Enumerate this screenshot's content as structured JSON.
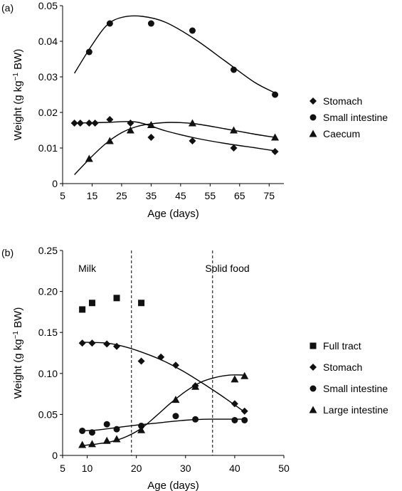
{
  "chart_data": [
    {
      "type": "scatter",
      "panel_label": "(a)",
      "xlabel": "Age (days)",
      "ylabel_pre": "Weight (g kg",
      "ylabel_sup": "−1",
      "ylabel_post": " BW)",
      "xlim": [
        5,
        80
      ],
      "ylim": [
        0,
        0.05
      ],
      "xticks": [
        5,
        15,
        25,
        35,
        45,
        55,
        65,
        75
      ],
      "xtick_labels": [
        "5",
        "15",
        "25",
        "35",
        "45",
        "55",
        "65",
        "75"
      ],
      "yticks": [
        0,
        0.01,
        0.02,
        0.03,
        0.04,
        0.05
      ],
      "ytick_labels": [
        "0",
        "0.01",
        "0.02",
        "0.03",
        "0.04",
        "0.05"
      ],
      "grid": false,
      "legend_position": "right",
      "series": [
        {
          "name": "Stomach",
          "marker": "diamond",
          "points": [
            [
              9,
              0.017
            ],
            [
              11,
              0.017
            ],
            [
              14,
              0.017
            ],
            [
              16,
              0.017
            ],
            [
              21,
              0.018
            ],
            [
              28,
              0.017
            ],
            [
              35,
              0.013
            ],
            [
              49,
              0.012
            ],
            [
              63,
              0.01
            ],
            [
              77,
              0.009
            ]
          ],
          "trend": [
            [
              9,
              0.017
            ],
            [
              20,
              0.0172
            ],
            [
              30,
              0.0173
            ],
            [
              40,
              0.0148
            ],
            [
              50,
              0.0128
            ],
            [
              60,
              0.0113
            ],
            [
              70,
              0.0101
            ],
            [
              77,
              0.0092
            ]
          ]
        },
        {
          "name": "Small intestine",
          "marker": "circle",
          "points": [
            [
              14,
              0.037
            ],
            [
              21,
              0.045
            ],
            [
              35,
              0.045
            ],
            [
              49,
              0.043
            ],
            [
              63,
              0.032
            ],
            [
              77,
              0.025
            ]
          ],
          "trend": [
            [
              9,
              0.031
            ],
            [
              15,
              0.039
            ],
            [
              20,
              0.0445
            ],
            [
              25,
              0.0467
            ],
            [
              32,
              0.047
            ],
            [
              40,
              0.0453
            ],
            [
              50,
              0.0405
            ],
            [
              60,
              0.0345
            ],
            [
              70,
              0.0285
            ],
            [
              77,
              0.0255
            ]
          ]
        },
        {
          "name": "Caecum",
          "marker": "triangle",
          "points": [
            [
              14,
              0.007
            ],
            [
              21,
              0.012
            ],
            [
              28,
              0.015
            ],
            [
              35,
              0.0165
            ],
            [
              49,
              0.017
            ],
            [
              63,
              0.015
            ],
            [
              77,
              0.013
            ]
          ],
          "trend": [
            [
              9,
              0.0025
            ],
            [
              15,
              0.0077
            ],
            [
              20,
              0.0115
            ],
            [
              25,
              0.0143
            ],
            [
              30,
              0.016
            ],
            [
              35,
              0.0168
            ],
            [
              42,
              0.0172
            ],
            [
              50,
              0.0168
            ],
            [
              60,
              0.0154
            ],
            [
              70,
              0.0139
            ],
            [
              77,
              0.013
            ]
          ]
        }
      ]
    },
    {
      "type": "scatter",
      "panel_label": "(b)",
      "xlabel": "Age (days)",
      "ylabel_pre": "Weight (g kg",
      "ylabel_sup": "−1",
      "ylabel_post": " BW)",
      "xlim": [
        5,
        50
      ],
      "ylim": [
        0,
        0.25
      ],
      "xticks": [
        5,
        10,
        20,
        30,
        40,
        50
      ],
      "xtick_labels": [
        "5",
        "10",
        "20",
        "30",
        "40",
        "50"
      ],
      "yticks": [
        0,
        0.05,
        0.1,
        0.15,
        0.2,
        0.25
      ],
      "ytick_labels": [
        "0",
        "0.05",
        "0.10",
        "0.15",
        "0.20",
        "0.25"
      ],
      "grid": false,
      "legend_position": "right",
      "vlines": [
        19,
        35.5
      ],
      "annotations": [
        {
          "text": "Milk",
          "x": 10,
          "y": 0.165
        },
        {
          "text": "Solid food",
          "x": 38.5,
          "y": 0.165
        }
      ],
      "series": [
        {
          "name": "Full tract",
          "marker": "square",
          "points": [
            [
              9,
              0.178
            ],
            [
              11,
              0.186
            ],
            [
              16,
              0.192
            ],
            [
              21,
              0.186
            ]
          ],
          "trend": []
        },
        {
          "name": "Stomach",
          "marker": "diamond",
          "points": [
            [
              9,
              0.137
            ],
            [
              11,
              0.137
            ],
            [
              14,
              0.136
            ],
            [
              16,
              0.133
            ],
            [
              21,
              0.115
            ],
            [
              25,
              0.12
            ],
            [
              28,
              0.11
            ],
            [
              32,
              0.085
            ],
            [
              40,
              0.063
            ],
            [
              42,
              0.054
            ]
          ],
          "trend": [
            [
              9,
              0.138
            ],
            [
              14,
              0.137
            ],
            [
              18,
              0.132
            ],
            [
              22,
              0.124
            ],
            [
              26,
              0.114
            ],
            [
              30,
              0.101
            ],
            [
              34,
              0.086
            ],
            [
              38,
              0.07
            ],
            [
              42,
              0.053
            ]
          ]
        },
        {
          "name": "Small intestine",
          "marker": "circle",
          "points": [
            [
              9,
              0.03
            ],
            [
              11,
              0.028
            ],
            [
              14,
              0.038
            ],
            [
              16,
              0.032
            ],
            [
              21,
              0.036
            ],
            [
              28,
              0.048
            ],
            [
              32,
              0.044
            ],
            [
              40,
              0.043
            ],
            [
              42,
              0.043
            ]
          ],
          "trend": [
            [
              9,
              0.03
            ],
            [
              12,
              0.031
            ],
            [
              16,
              0.034
            ],
            [
              20,
              0.037
            ],
            [
              25,
              0.04
            ],
            [
              30,
              0.043
            ],
            [
              35,
              0.0442
            ],
            [
              42,
              0.0442
            ]
          ]
        },
        {
          "name": "Large intestine",
          "marker": "triangle",
          "points": [
            [
              9,
              0.013
            ],
            [
              11,
              0.014
            ],
            [
              14,
              0.018
            ],
            [
              16,
              0.02
            ],
            [
              21,
              0.031
            ],
            [
              28,
              0.068
            ],
            [
              32,
              0.084
            ],
            [
              40,
              0.093
            ],
            [
              42,
              0.097
            ]
          ],
          "trend": [
            [
              9,
              0.012
            ],
            [
              12,
              0.014
            ],
            [
              15,
              0.017
            ],
            [
              18,
              0.023
            ],
            [
              21,
              0.033
            ],
            [
              24,
              0.048
            ],
            [
              27,
              0.064
            ],
            [
              30,
              0.078
            ],
            [
              33,
              0.089
            ],
            [
              36,
              0.095
            ],
            [
              39,
              0.098
            ],
            [
              42,
              0.098
            ]
          ]
        }
      ]
    }
  ]
}
